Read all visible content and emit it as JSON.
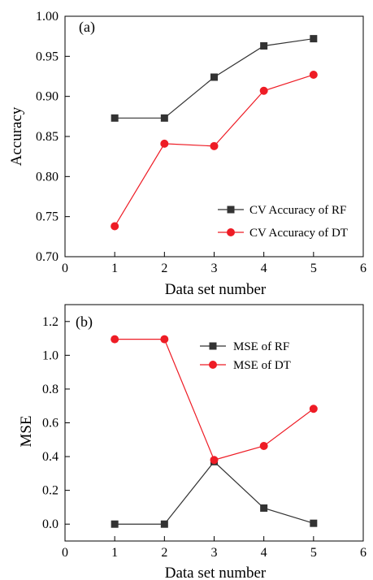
{
  "chart_data": [
    {
      "type": "line",
      "panel_label": "(a)",
      "xlabel": "Data set number",
      "ylabel": "Accuracy",
      "xlim": [
        0,
        6
      ],
      "ylim": [
        0.7,
        1.0
      ],
      "xticks": [
        "0",
        "1",
        "2",
        "3",
        "4",
        "5",
        "6"
      ],
      "yticks": [
        "0.70",
        "0.75",
        "0.80",
        "0.85",
        "0.90",
        "0.95",
        "1.00"
      ],
      "grid": false,
      "legend_position": "lower-right",
      "x": [
        1,
        2,
        3,
        4,
        5
      ],
      "series": [
        {
          "name": "CV Accuracy of RF",
          "marker": "square",
          "color": "#333333",
          "values": [
            0.873,
            0.873,
            0.924,
            0.963,
            0.972
          ]
        },
        {
          "name": "CV Accuracy of DT",
          "marker": "circle",
          "color": "#ee1c25",
          "values": [
            0.738,
            0.841,
            0.838,
            0.907,
            0.927
          ]
        }
      ]
    },
    {
      "type": "line",
      "panel_label": "(b)",
      "xlabel": "Data set number",
      "ylabel": "MSE",
      "xlim": [
        0,
        6
      ],
      "ylim": [
        -0.1,
        1.3
      ],
      "xticks": [
        "0",
        "1",
        "2",
        "3",
        "4",
        "5",
        "6"
      ],
      "yticks": [
        "0.0",
        "0.2",
        "0.4",
        "0.6",
        "0.8",
        "1.0",
        "1.2"
      ],
      "grid": false,
      "legend_position": "top-center",
      "x": [
        1,
        2,
        3,
        4,
        5
      ],
      "series": [
        {
          "name": "MSE of RF",
          "marker": "square",
          "color": "#333333",
          "values": [
            0.0,
            0.0,
            0.37,
            0.095,
            0.005
          ]
        },
        {
          "name": "MSE of DT",
          "marker": "circle",
          "color": "#ee1c25",
          "values": [
            1.095,
            1.095,
            0.38,
            0.463,
            0.683
          ]
        }
      ]
    }
  ]
}
